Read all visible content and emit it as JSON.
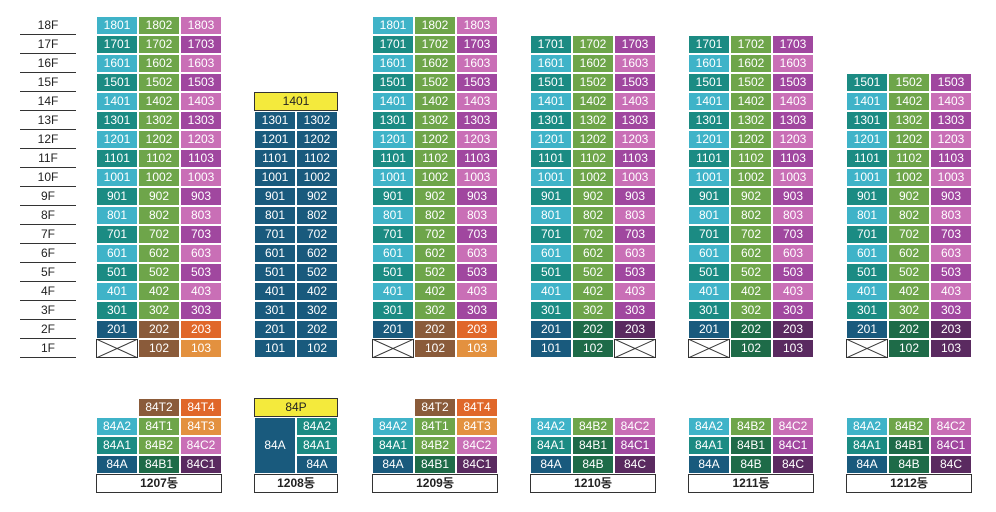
{
  "floors": [
    "18F",
    "17F",
    "16F",
    "15F",
    "14F",
    "13F",
    "12F",
    "11F",
    "10F",
    "9F",
    "8F",
    "7F",
    "6F",
    "5F",
    "4F",
    "3F",
    "2F",
    "1F"
  ],
  "colors": {
    "c1": "#3fb3c8",
    "c2": "#6ea54a",
    "c3": "#a0479f",
    "c3b": "#c96fb6",
    "navy": "#195a7d",
    "teal": "#1b8b83",
    "green_dark": "#1e6b48",
    "plum": "#5a2a60",
    "orange": "#e3913f",
    "orange_dark": "#e0672a",
    "brown": "#8a5b3a",
    "yellow": "#f4ea3c"
  },
  "buildings": [
    {
      "name": "1207동",
      "floors": {
        "18": [
          "1801",
          "1802",
          "1803"
        ],
        "17": [
          "1701",
          "1702",
          "1703"
        ],
        "16": [
          "1601",
          "1602",
          "1603"
        ],
        "15": [
          "1501",
          "1502",
          "1503"
        ],
        "14": [
          "1401",
          "1402",
          "1403"
        ],
        "13": [
          "1301",
          "1302",
          "1303"
        ],
        "12": [
          "1201",
          "1202",
          "1203"
        ],
        "11": [
          "1101",
          "1102",
          "1103"
        ],
        "10": [
          "1001",
          "1002",
          "1003"
        ],
        "9": [
          "901",
          "902",
          "903"
        ],
        "8": [
          "801",
          "802",
          "803"
        ],
        "7": [
          "701",
          "702",
          "703"
        ],
        "6": [
          "601",
          "602",
          "603"
        ],
        "5": [
          "501",
          "502",
          "503"
        ],
        "4": [
          "401",
          "402",
          "403"
        ],
        "3": [
          "301",
          "302",
          "303"
        ],
        "2": [
          "201",
          "202",
          "203"
        ],
        "1": [
          "",
          "102",
          "103"
        ]
      },
      "types": [
        [
          "",
          "84T2",
          "84T4"
        ],
        [
          "84A2",
          "84T1",
          "84T3"
        ],
        [
          "84A1",
          "84B2",
          "84C2"
        ],
        [
          "84A",
          "84B1",
          "84C1"
        ]
      ]
    },
    {
      "name": "1208동",
      "top_unit": "1401",
      "floors": {
        "13": [
          "1301",
          "1302"
        ],
        "12": [
          "1201",
          "1202"
        ],
        "11": [
          "1101",
          "1102"
        ],
        "10": [
          "1001",
          "1002"
        ],
        "9": [
          "901",
          "902"
        ],
        "8": [
          "801",
          "802"
        ],
        "7": [
          "701",
          "702"
        ],
        "6": [
          "601",
          "602"
        ],
        "5": [
          "501",
          "502"
        ],
        "4": [
          "401",
          "402"
        ],
        "3": [
          "301",
          "302"
        ],
        "2": [
          "201",
          "202"
        ],
        "1": [
          "101",
          "102"
        ]
      },
      "types": [
        [
          "84P"
        ],
        [
          "84A",
          "84A2"
        ],
        [
          "",
          "84A1"
        ],
        [
          "",
          "84A"
        ]
      ]
    },
    {
      "name": "1209동",
      "floors": {
        "18": [
          "1801",
          "1802",
          "1803"
        ],
        "17": [
          "1701",
          "1702",
          "1703"
        ],
        "16": [
          "1601",
          "1602",
          "1603"
        ],
        "15": [
          "1501",
          "1502",
          "1503"
        ],
        "14": [
          "1401",
          "1402",
          "1403"
        ],
        "13": [
          "1301",
          "1302",
          "1303"
        ],
        "12": [
          "1201",
          "1202",
          "1203"
        ],
        "11": [
          "1101",
          "1102",
          "1103"
        ],
        "10": [
          "1001",
          "1002",
          "1003"
        ],
        "9": [
          "901",
          "902",
          "903"
        ],
        "8": [
          "801",
          "802",
          "803"
        ],
        "7": [
          "701",
          "702",
          "703"
        ],
        "6": [
          "601",
          "602",
          "603"
        ],
        "5": [
          "501",
          "502",
          "503"
        ],
        "4": [
          "401",
          "402",
          "403"
        ],
        "3": [
          "301",
          "302",
          "303"
        ],
        "2": [
          "201",
          "202",
          "203"
        ],
        "1": [
          "",
          "102",
          "103"
        ]
      },
      "types": [
        [
          "",
          "84T2",
          "84T4"
        ],
        [
          "84A2",
          "84T1",
          "84T3"
        ],
        [
          "84A1",
          "84B2",
          "84C2"
        ],
        [
          "84A",
          "84B1",
          "84C1"
        ]
      ]
    },
    {
      "name": "1210동",
      "floors": {
        "17": [
          "1701",
          "1702",
          "1703"
        ],
        "16": [
          "1601",
          "1602",
          "1603"
        ],
        "15": [
          "1501",
          "1502",
          "1503"
        ],
        "14": [
          "1401",
          "1402",
          "1403"
        ],
        "13": [
          "1301",
          "1302",
          "1303"
        ],
        "12": [
          "1201",
          "1202",
          "1203"
        ],
        "11": [
          "1101",
          "1102",
          "1103"
        ],
        "10": [
          "1001",
          "1002",
          "1003"
        ],
        "9": [
          "901",
          "902",
          "903"
        ],
        "8": [
          "801",
          "802",
          "803"
        ],
        "7": [
          "701",
          "702",
          "703"
        ],
        "6": [
          "601",
          "602",
          "603"
        ],
        "5": [
          "501",
          "502",
          "503"
        ],
        "4": [
          "401",
          "402",
          "403"
        ],
        "3": [
          "301",
          "302",
          "303"
        ],
        "2": [
          "201",
          "202",
          "203"
        ],
        "1": [
          "101",
          "102",
          ""
        ]
      },
      "types": [
        [
          "84A2",
          "84B2",
          "84C2"
        ],
        [
          "84A1",
          "84B1",
          "84C1"
        ],
        [
          "84A",
          "84B",
          "84C"
        ]
      ]
    },
    {
      "name": "1211동",
      "floors": {
        "17": [
          "1701",
          "1702",
          "1703"
        ],
        "16": [
          "1601",
          "1602",
          "1603"
        ],
        "15": [
          "1501",
          "1502",
          "1503"
        ],
        "14": [
          "1401",
          "1402",
          "1403"
        ],
        "13": [
          "1301",
          "1302",
          "1303"
        ],
        "12": [
          "1201",
          "1202",
          "1203"
        ],
        "11": [
          "1101",
          "1102",
          "1103"
        ],
        "10": [
          "1001",
          "1002",
          "1003"
        ],
        "9": [
          "901",
          "902",
          "903"
        ],
        "8": [
          "801",
          "802",
          "803"
        ],
        "7": [
          "701",
          "702",
          "703"
        ],
        "6": [
          "601",
          "602",
          "603"
        ],
        "5": [
          "501",
          "502",
          "503"
        ],
        "4": [
          "401",
          "402",
          "403"
        ],
        "3": [
          "301",
          "302",
          "303"
        ],
        "2": [
          "201",
          "202",
          "203"
        ],
        "1": [
          "",
          "102",
          "103"
        ]
      },
      "types": [
        [
          "84A2",
          "84B2",
          "84C2"
        ],
        [
          "84A1",
          "84B1",
          "84C1"
        ],
        [
          "84A",
          "84B",
          "84C"
        ]
      ]
    },
    {
      "name": "1212동",
      "floors": {
        "15": [
          "1501",
          "1502",
          "1503"
        ],
        "14": [
          "1401",
          "1402",
          "1403"
        ],
        "13": [
          "1301",
          "1302",
          "1303"
        ],
        "12": [
          "1201",
          "1202",
          "1203"
        ],
        "11": [
          "1101",
          "1102",
          "1103"
        ],
        "10": [
          "1001",
          "1002",
          "1003"
        ],
        "9": [
          "901",
          "902",
          "903"
        ],
        "8": [
          "801",
          "802",
          "803"
        ],
        "7": [
          "701",
          "702",
          "703"
        ],
        "6": [
          "601",
          "602",
          "603"
        ],
        "5": [
          "501",
          "502",
          "503"
        ],
        "4": [
          "401",
          "402",
          "403"
        ],
        "3": [
          "301",
          "302",
          "303"
        ],
        "2": [
          "201",
          "202",
          "203"
        ],
        "1": [
          "",
          "102",
          "103"
        ]
      },
      "types": [
        [
          "84A2",
          "84B2",
          "84C2"
        ],
        [
          "84A1",
          "84B1",
          "84C1"
        ],
        [
          "84A",
          "84B",
          "84C"
        ]
      ]
    }
  ]
}
